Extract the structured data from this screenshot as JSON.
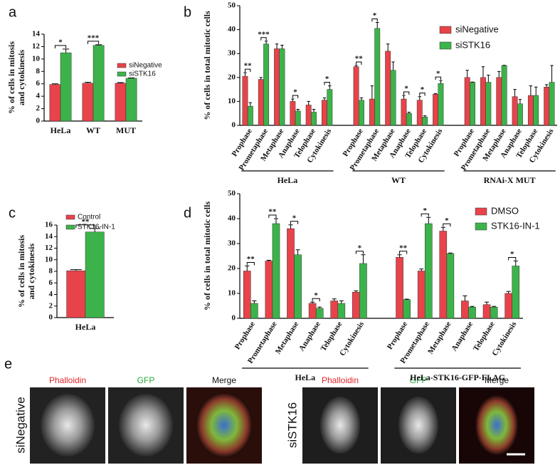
{
  "chart_data": [
    {
      "type": "bar",
      "label": "a",
      "ylabel": [
        "% of cells in mitosis",
        "and cytokinesis"
      ],
      "categories": [
        "HeLa",
        "WT",
        "MUT"
      ],
      "series": [
        {
          "name": "siNegative",
          "color": "#e8434a",
          "values": [
            5.9,
            6.1,
            6.1
          ],
          "errors": [
            0.1,
            0.15,
            0.1
          ]
        },
        {
          "name": "siSTK16",
          "color": "#3cb34a",
          "values": [
            11.0,
            12.2,
            6.9
          ],
          "errors": [
            0.6,
            0.1,
            0.05
          ]
        }
      ],
      "significance": [
        "*",
        "***",
        null
      ],
      "ylim": [
        0,
        14
      ],
      "yticks": [
        0,
        2,
        4,
        6,
        8,
        10,
        12,
        14
      ]
    },
    {
      "type": "bar",
      "label": "b",
      "ylabel": [
        "% of cells in total mitotic cells"
      ],
      "groups": [
        "HeLa",
        "WT",
        "RNAi-X MUT"
      ],
      "categories": [
        "Prophase",
        "Prometaphase",
        "Metaphase",
        "Anaphase",
        "Telophase",
        "Cytokinesis",
        "Prophase",
        "Prometaphase",
        "Metaphase",
        "Anaphase",
        "Telophase",
        "Cytokinesis",
        "Prophase",
        "Prometaphase",
        "Metaphase",
        "Anaphase",
        "Telophase",
        "Cytokinesis"
      ],
      "series": [
        {
          "name": "siNegative",
          "color": "#e8434a",
          "values": [
            20.5,
            19.2,
            32,
            10,
            8.5,
            10.5,
            24.5,
            11,
            31,
            11,
            10.5,
            13,
            20,
            20,
            20,
            12,
            12.5,
            16
          ],
          "errors": [
            1.5,
            0.8,
            2,
            1,
            1.5,
            1,
            0.5,
            5.5,
            3,
            1.5,
            1.5,
            0.3,
            3,
            4.5,
            2.5,
            3,
            4,
            1
          ]
        },
        {
          "name": "siSTK16",
          "color": "#3cb34a",
          "values": [
            8,
            34,
            32,
            6,
            5.5,
            15,
            10.5,
            40.5,
            23,
            5,
            3.5,
            17.5,
            18,
            18,
            25,
            9,
            12.5,
            18
          ],
          "errors": [
            1.5,
            1.2,
            1.5,
            0.7,
            1.2,
            1.5,
            1,
            2.5,
            3.5,
            0.5,
            0.5,
            1.2,
            0.1,
            3,
            0.1,
            1.8,
            3.5,
            7
          ]
        }
      ],
      "significance": [
        "**",
        "***",
        null,
        "*",
        null,
        "*",
        "**",
        "*",
        null,
        "*",
        "*",
        "*",
        null,
        null,
        null,
        null,
        null,
        null
      ],
      "ylim": [
        0,
        50
      ],
      "yticks": [
        0,
        10,
        20,
        30,
        40,
        50
      ]
    },
    {
      "type": "bar",
      "label": "c",
      "ylabel": [
        "% of cells in mitosis",
        "and cytokinesis"
      ],
      "categories": [
        "HeLa"
      ],
      "series": [
        {
          "name": "Control",
          "color": "#e8434a",
          "values": [
            8.1
          ],
          "errors": [
            0.2
          ]
        },
        {
          "name": "STK16-IN-1",
          "color": "#3cb34a",
          "values": [
            14.8
          ],
          "errors": [
            0.6
          ]
        }
      ],
      "significance": [
        "**"
      ],
      "ylim": [
        0,
        16
      ],
      "yticks": [
        0,
        2,
        4,
        6,
        8,
        10,
        12,
        14,
        16
      ]
    },
    {
      "type": "bar",
      "label": "d",
      "ylabel": [
        "% of cells in total mitotic cells"
      ],
      "groups": [
        "HeLa",
        "HeLa-STK16-GFP-FLAG"
      ],
      "categories": [
        "Prophase",
        "Prometaphase",
        "Metaphase",
        "Anaphase",
        "Telophase",
        "Cytokinesis",
        "Prophase",
        "Prometaphase",
        "Metaphase",
        "Anaphase",
        "Telophase",
        "Cytokinesis"
      ],
      "series": [
        {
          "name": "DMSO",
          "color": "#e8434a",
          "values": [
            19,
            23,
            36,
            6,
            7,
            10.5,
            24.5,
            19,
            35,
            7,
            5.5,
            10
          ],
          "errors": [
            2,
            0.3,
            1.5,
            0.5,
            0.8,
            0.5,
            1,
            0.8,
            1.5,
            2,
            1,
            0.8
          ]
        },
        {
          "name": "STK16-IN-1",
          "color": "#3cb34a",
          "values": [
            6,
            38,
            25.5,
            4,
            6,
            22,
            7.5,
            38,
            26,
            4.5,
            4.5,
            21
          ],
          "errors": [
            1,
            2,
            2,
            0.5,
            1,
            3.5,
            0.2,
            2.5,
            0.2,
            0.3,
            0.3,
            2
          ]
        }
      ],
      "significance": [
        "**",
        "**",
        "*",
        "*",
        null,
        "*",
        "**",
        "*",
        "*",
        null,
        null,
        "*"
      ],
      "ylim": [
        0,
        50
      ],
      "yticks": [
        0,
        10,
        20,
        30,
        40,
        50
      ]
    }
  ],
  "panel_e": {
    "label": "e",
    "rows": [
      {
        "name": "siNegative",
        "channels": [
          "Phalloidin",
          "GFP",
          "Merge"
        ]
      },
      {
        "name": "siSTK16",
        "channels": [
          "Phalloidin",
          "GFP",
          "Merge"
        ]
      }
    ]
  }
}
